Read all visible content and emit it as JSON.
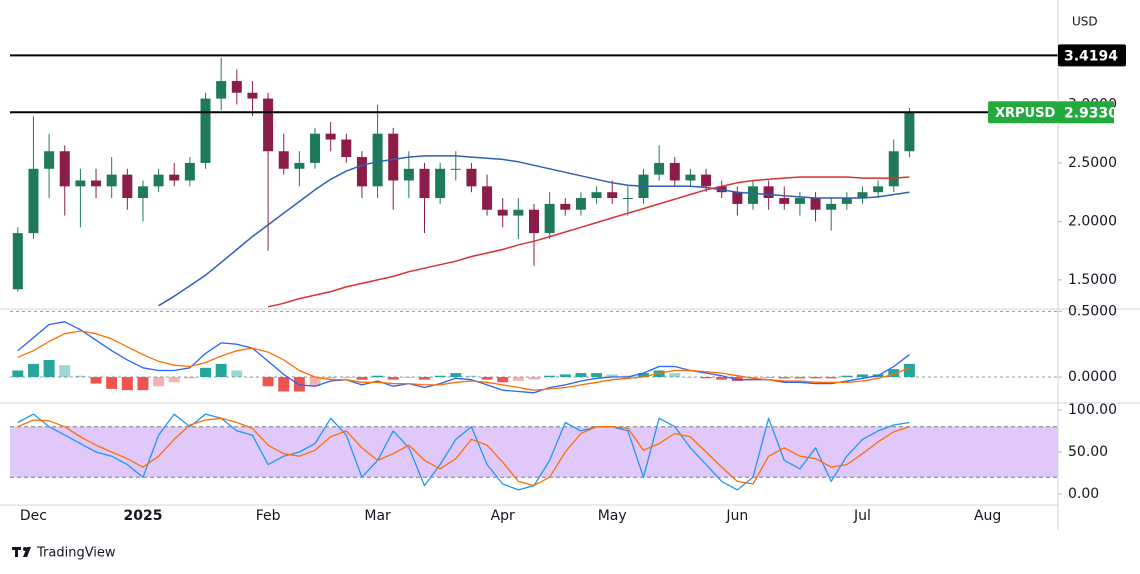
{
  "brand": "TradingView",
  "chart_data": [
    {
      "type": "candlestick",
      "symbol": "XRPUSD",
      "currency": "USD",
      "categories": [
        null,
        "Dec",
        null,
        null,
        null,
        null,
        null,
        null,
        "2025",
        null,
        null,
        null,
        null,
        null,
        null,
        null,
        "Feb",
        null,
        null,
        null,
        null,
        null,
        null,
        "Mar",
        null,
        null,
        null,
        null,
        null,
        null,
        null,
        "Apr",
        null,
        null,
        null,
        null,
        null,
        null,
        "May",
        null,
        null,
        null,
        null,
        null,
        null,
        null,
        "Jun",
        null,
        null,
        null,
        null,
        null,
        null,
        null,
        "Jul",
        null,
        null,
        null,
        null,
        null,
        null,
        null,
        "Aug",
        null,
        null,
        null,
        null
      ],
      "open": [
        1.42,
        1.9,
        2.45,
        2.6,
        2.3,
        2.35,
        2.3,
        2.4,
        2.2,
        2.3,
        2.4,
        2.35,
        2.5,
        3.05,
        3.2,
        3.1,
        3.05,
        2.6,
        2.45,
        2.5,
        2.75,
        2.7,
        2.55,
        2.3,
        2.75,
        2.35,
        2.45,
        2.2,
        2.45,
        2.45,
        2.3,
        2.1,
        2.05,
        2.1,
        1.9,
        2.15,
        2.1,
        2.2,
        2.25,
        2.2,
        2.2,
        2.4,
        2.5,
        2.35,
        2.4,
        2.3,
        2.25,
        2.15,
        2.3,
        2.2,
        2.15,
        2.2,
        2.1,
        2.15,
        2.2,
        2.25,
        2.3,
        2.6,
        null,
        null,
        null,
        null,
        null,
        null,
        null,
        null,
        null
      ],
      "high": [
        1.95,
        2.9,
        2.75,
        2.65,
        2.45,
        2.45,
        2.55,
        2.45,
        2.35,
        2.45,
        2.5,
        2.55,
        3.1,
        3.4,
        3.3,
        3.2,
        3.1,
        2.75,
        2.6,
        2.8,
        2.85,
        2.75,
        2.6,
        3.0,
        2.8,
        2.6,
        2.5,
        2.5,
        2.6,
        2.5,
        2.4,
        2.2,
        2.2,
        2.15,
        2.25,
        2.2,
        2.25,
        2.3,
        2.35,
        2.3,
        2.45,
        2.65,
        2.55,
        2.45,
        2.45,
        2.35,
        2.3,
        2.35,
        2.35,
        2.3,
        2.25,
        2.25,
        2.2,
        2.25,
        2.3,
        2.35,
        2.7,
        2.97,
        null,
        null,
        null,
        null,
        null,
        null,
        null,
        null,
        null
      ],
      "low": [
        1.4,
        1.85,
        2.2,
        2.05,
        1.95,
        2.2,
        2.2,
        2.1,
        2.0,
        2.25,
        2.3,
        2.3,
        2.45,
        2.95,
        3.0,
        2.9,
        1.75,
        2.4,
        2.3,
        2.45,
        2.6,
        2.5,
        2.2,
        2.2,
        2.1,
        2.2,
        1.9,
        2.15,
        2.35,
        2.25,
        2.05,
        1.95,
        1.85,
        1.62,
        1.85,
        2.05,
        2.05,
        2.15,
        2.15,
        2.05,
        2.15,
        2.35,
        2.3,
        2.3,
        2.25,
        2.2,
        2.05,
        2.1,
        2.1,
        2.1,
        2.05,
        2.0,
        1.92,
        2.1,
        2.15,
        2.2,
        2.25,
        2.55,
        null,
        null,
        null,
        null,
        null,
        null,
        null,
        null,
        null
      ],
      "close": [
        1.9,
        2.45,
        2.6,
        2.3,
        2.35,
        2.3,
        2.4,
        2.2,
        2.3,
        2.4,
        2.35,
        2.5,
        3.05,
        3.2,
        3.1,
        3.05,
        2.6,
        2.45,
        2.5,
        2.75,
        2.7,
        2.55,
        2.3,
        2.75,
        2.35,
        2.45,
        2.2,
        2.45,
        2.45,
        2.3,
        2.1,
        2.05,
        2.1,
        1.9,
        2.15,
        2.1,
        2.2,
        2.25,
        2.2,
        2.2,
        2.4,
        2.5,
        2.35,
        2.4,
        2.3,
        2.25,
        2.15,
        2.3,
        2.2,
        2.15,
        2.2,
        2.1,
        2.15,
        2.2,
        2.25,
        2.3,
        2.6,
        2.933,
        null,
        null,
        null,
        null,
        null,
        null,
        null,
        null,
        null
      ],
      "up_color": "#1f7a5c",
      "down_color": "#8c1d4b",
      "moving_averages": [
        {
          "color": "#2f5fb3",
          "values": [
            null,
            null,
            null,
            null,
            null,
            null,
            null,
            null,
            null,
            1.28,
            1.36,
            1.45,
            1.54,
            1.65,
            1.76,
            1.87,
            1.97,
            2.07,
            2.17,
            2.27,
            2.36,
            2.43,
            2.48,
            2.51,
            2.53,
            2.55,
            2.56,
            2.56,
            2.56,
            2.55,
            2.54,
            2.53,
            2.51,
            2.48,
            2.45,
            2.42,
            2.39,
            2.36,
            2.33,
            2.31,
            2.3,
            2.3,
            2.3,
            2.3,
            2.29,
            2.27,
            2.25,
            2.24,
            2.23,
            2.22,
            2.21,
            2.2,
            2.2,
            2.2,
            2.2,
            2.21,
            2.23,
            2.25,
            null,
            null,
            null,
            null,
            null,
            null,
            null,
            null,
            null
          ]
        },
        {
          "color": "#d6332f",
          "values": [
            null,
            null,
            null,
            null,
            null,
            null,
            null,
            null,
            null,
            null,
            null,
            null,
            null,
            null,
            null,
            null,
            1.27,
            1.3,
            1.34,
            1.37,
            1.4,
            1.44,
            1.47,
            1.5,
            1.53,
            1.57,
            1.6,
            1.63,
            1.66,
            1.7,
            1.73,
            1.76,
            1.8,
            1.83,
            1.87,
            1.91,
            1.95,
            1.99,
            2.03,
            2.07,
            2.11,
            2.15,
            2.19,
            2.23,
            2.27,
            2.3,
            2.33,
            2.35,
            2.36,
            2.37,
            2.38,
            2.38,
            2.38,
            2.38,
            2.37,
            2.37,
            2.37,
            2.38,
            null,
            null,
            null,
            null,
            null,
            null,
            null,
            null,
            null
          ]
        }
      ],
      "levels": [
        3.4194,
        2.933
      ],
      "level_color": "#000000",
      "last_price": {
        "value": 2.933,
        "label": "2.9330"
      },
      "last_price_color": "#22ab3c",
      "ylim": [
        1.26,
        3.85
      ],
      "yticks": [
        {
          "value": 1.5,
          "label": "1.5000"
        },
        {
          "value": 2.0,
          "label": "2.0000"
        },
        {
          "value": 2.5,
          "label": "2.5000"
        },
        {
          "value": 3.0,
          "label": "3.0000"
        }
      ]
    },
    {
      "type": "macd",
      "series": [
        {
          "color": "#2962ff",
          "values": [
            0.2,
            0.3,
            0.4,
            0.42,
            0.36,
            0.28,
            0.2,
            0.13,
            0.07,
            0.05,
            0.05,
            0.07,
            0.18,
            0.26,
            0.25,
            0.22,
            0.12,
            0.02,
            -0.06,
            -0.07,
            -0.03,
            -0.02,
            -0.06,
            -0.03,
            -0.07,
            -0.05,
            -0.08,
            -0.05,
            -0.01,
            -0.02,
            -0.06,
            -0.1,
            -0.11,
            -0.12,
            -0.08,
            -0.06,
            -0.03,
            -0.01,
            0.0,
            0.0,
            0.03,
            0.08,
            0.08,
            0.05,
            0.03,
            0.01,
            -0.02,
            -0.02,
            -0.02,
            -0.04,
            -0.04,
            -0.05,
            -0.05,
            -0.03,
            -0.01,
            0.01,
            0.08,
            0.17,
            null,
            null,
            null,
            null,
            null,
            null,
            null,
            null,
            null
          ]
        },
        {
          "color": "#ff6d00",
          "values": [
            0.15,
            0.2,
            0.27,
            0.33,
            0.35,
            0.33,
            0.29,
            0.23,
            0.17,
            0.12,
            0.09,
            0.08,
            0.11,
            0.16,
            0.2,
            0.22,
            0.19,
            0.13,
            0.05,
            0.0,
            -0.02,
            -0.02,
            -0.04,
            -0.04,
            -0.05,
            -0.05,
            -0.06,
            -0.06,
            -0.04,
            -0.03,
            -0.04,
            -0.06,
            -0.08,
            -0.1,
            -0.09,
            -0.08,
            -0.06,
            -0.04,
            -0.02,
            -0.01,
            0.0,
            0.03,
            0.05,
            0.05,
            0.04,
            0.03,
            0.01,
            -0.01,
            -0.02,
            -0.03,
            -0.03,
            -0.04,
            -0.04,
            -0.04,
            -0.03,
            -0.01,
            0.02,
            0.07,
            null,
            null,
            null,
            null,
            null,
            null,
            null,
            null,
            null
          ]
        }
      ],
      "histogram": {
        "up_color": "#26a69a",
        "down_color": "#ef5350",
        "values": [
          0.05,
          0.1,
          0.13,
          0.09,
          0.01,
          -0.05,
          -0.09,
          -0.1,
          -0.1,
          -0.07,
          -0.04,
          -0.01,
          0.07,
          0.1,
          0.05,
          0.0,
          -0.07,
          -0.11,
          -0.11,
          -0.07,
          -0.01,
          0.0,
          -0.02,
          0.01,
          -0.02,
          0.0,
          -0.02,
          0.01,
          0.03,
          0.01,
          -0.02,
          -0.04,
          -0.03,
          -0.02,
          0.01,
          0.02,
          0.03,
          0.03,
          0.02,
          0.01,
          0.03,
          0.05,
          0.03,
          0.0,
          -0.01,
          -0.02,
          -0.03,
          -0.01,
          0.0,
          -0.01,
          -0.01,
          -0.01,
          -0.01,
          0.01,
          0.02,
          0.02,
          0.06,
          0.1,
          null,
          null,
          null,
          null,
          null,
          null,
          null,
          null,
          null
        ]
      },
      "ylim": [
        -0.19,
        0.51
      ],
      "yticks": [
        {
          "value": 0,
          "label": "0.0000"
        },
        {
          "value": 0.5,
          "label": "0.5000"
        }
      ]
    },
    {
      "type": "stoch",
      "series": [
        {
          "color": "#2196f3",
          "values": [
            85,
            95,
            80,
            70,
            60,
            50,
            45,
            35,
            20,
            70,
            95,
            80,
            95,
            90,
            75,
            70,
            35,
            45,
            50,
            60,
            90,
            70,
            20,
            40,
            75,
            55,
            10,
            35,
            65,
            80,
            35,
            12,
            5,
            10,
            40,
            85,
            75,
            80,
            80,
            75,
            20,
            90,
            80,
            55,
            35,
            15,
            5,
            20,
            90,
            40,
            30,
            55,
            15,
            45,
            65,
            75,
            82,
            85,
            null,
            null,
            null,
            null,
            null,
            null,
            null,
            null,
            null
          ]
        },
        {
          "color": "#ff6d00",
          "values": [
            80,
            88,
            87,
            80,
            68,
            58,
            50,
            42,
            32,
            45,
            65,
            82,
            88,
            90,
            85,
            78,
            58,
            48,
            45,
            52,
            68,
            75,
            55,
            40,
            48,
            58,
            40,
            30,
            42,
            65,
            58,
            38,
            15,
            10,
            20,
            50,
            72,
            80,
            80,
            78,
            52,
            60,
            72,
            68,
            50,
            32,
            15,
            12,
            45,
            55,
            45,
            42,
            32,
            35,
            48,
            62,
            74,
            80,
            null,
            null,
            null,
            null,
            null,
            null,
            null,
            null,
            null
          ]
        }
      ],
      "band": [
        20,
        80
      ],
      "band_color": "#e1c8fb",
      "ylim": [
        -13,
        107
      ],
      "yticks": [
        {
          "value": 0,
          "label": "0.00"
        },
        {
          "value": 50,
          "label": "50.00"
        },
        {
          "value": 100,
          "label": "100.00"
        }
      ]
    }
  ]
}
